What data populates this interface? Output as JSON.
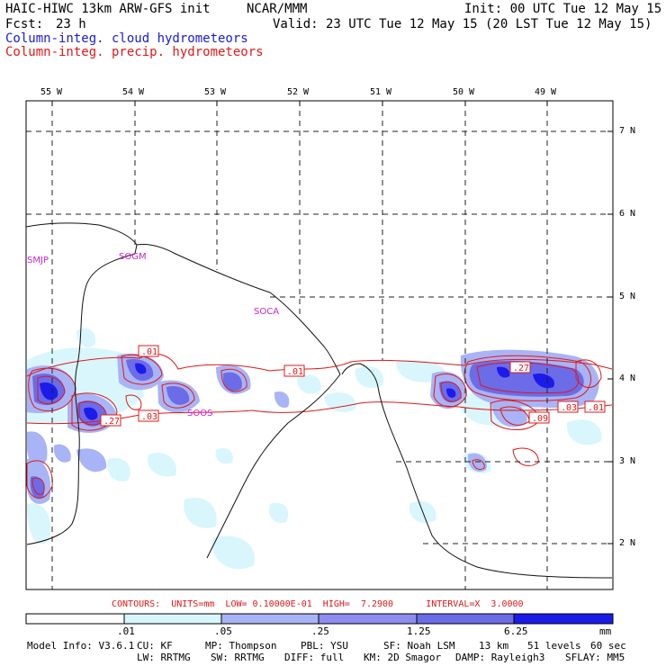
{
  "header": {
    "model": "HAIC-HIWC 13km ARW-GFS init",
    "org": "NCAR/MMM",
    "init": "Init: 00 UTC Tue 12 May 15",
    "fcst_label": "Fcst:",
    "fcst_value": "23 h",
    "valid": "Valid: 23 UTC Tue 12 May 15 (20 LST Tue 12 May 15)",
    "field1": "Column-integ. cloud hydrometeors",
    "field2": "Column-integ. precip. hydrometeors"
  },
  "colors": {
    "cloud_field": "#1a1ad8",
    "precip_field": "#e01818",
    "station": "#cc22cc",
    "shade_levels": [
      "#ffffff",
      "#d9f6fc",
      "#a8b4f5",
      "#8d8def",
      "#6c6ce8",
      "#3b3be0",
      "#1b1bea"
    ]
  },
  "map": {
    "lon_labels": [
      "55 W",
      "54 W",
      "53 W",
      "52 W",
      "51 W",
      "50 W",
      "49 W"
    ],
    "lat_labels": [
      "7 N",
      "6 N",
      "5 N",
      "4 N",
      "3 N",
      "2 N"
    ],
    "stations": [
      "SMJP",
      "SOGM",
      "SOCA",
      "SOOS"
    ],
    "contour_labels": [
      ".01",
      ".01",
      ".03",
      ".27",
      ".27",
      ".09",
      ".03",
      ".01"
    ]
  },
  "colorbar": {
    "contours_line": "CONTOURS:  UNITS=mm  LOW= 0.10000E-01  HIGH=  7.2900      INTERVAL=X  3.0000",
    "ticks": [
      ".01",
      ".05",
      ".25",
      "1.25",
      "6.25",
      "mm"
    ]
  },
  "footer": {
    "line1_items": [
      "Model Info: V3.6.1",
      "CU: KF",
      "MP: Thompson",
      "PBL: YSU",
      "SF: Noah LSM",
      "13 km",
      "51 levels",
      "60 sec"
    ],
    "line2_items": [
      "LW: RRTMG",
      "SW: RRTMG",
      "DIFF: full",
      "KM: 2D Smagor",
      "DAMP: Rayleigh3",
      "SFLAY: MM5"
    ]
  }
}
